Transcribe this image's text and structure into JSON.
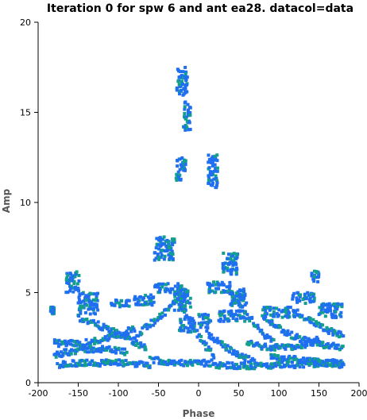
{
  "chart_data": {
    "type": "scatter",
    "title": "Iteration 0 for spw 6 and ant ea28.  datacol=data",
    "xlabel": "Phase",
    "ylabel": "Amp",
    "xlim": [
      -200,
      200
    ],
    "ylim": [
      0,
      20
    ],
    "x_ticks": [
      -200,
      -150,
      -100,
      -50,
      0,
      50,
      100,
      150,
      200
    ],
    "y_ticks": [
      0,
      5,
      10,
      15,
      20
    ],
    "x_tick_labels": [
      "-200",
      "-150",
      "-100",
      "-50",
      "0",
      "50",
      "100",
      "150",
      "200"
    ],
    "y_tick_labels": [
      "0",
      "5",
      "10",
      "15",
      "20"
    ],
    "grid": false,
    "colors": {
      "primary": "#1f6ff0",
      "secondary": "#12a08c"
    },
    "clusters": [
      {
        "x": [
          -27,
          -14
        ],
        "y": [
          15.8,
          17.5
        ]
      },
      {
        "x": [
          -20,
          -10
        ],
        "y": [
          14.0,
          15.6
        ]
      },
      {
        "x": [
          -28,
          -16
        ],
        "y": [
          11.2,
          12.6
        ]
      },
      {
        "x": [
          12,
          24
        ],
        "y": [
          10.8,
          12.7
        ]
      },
      {
        "x": [
          -55,
          -30
        ],
        "y": [
          6.8,
          8.1
        ]
      },
      {
        "x": [
          -165,
          -148
        ],
        "y": [
          5.0,
          6.2
        ]
      },
      {
        "x": [
          -150,
          -125
        ],
        "y": [
          3.8,
          5.0
        ]
      },
      {
        "x": [
          -110,
          -85
        ],
        "y": [
          4.1,
          4.6
        ]
      },
      {
        "x": [
          -80,
          -55
        ],
        "y": [
          4.3,
          4.9
        ]
      },
      {
        "x": [
          -55,
          -20
        ],
        "y": [
          5.0,
          5.5
        ]
      },
      {
        "x": [
          -30,
          -10
        ],
        "y": [
          4.0,
          5.2
        ]
      },
      {
        "x": [
          -25,
          -5
        ],
        "y": [
          2.8,
          3.6
        ]
      },
      {
        "x": [
          10,
          40
        ],
        "y": [
          5.0,
          5.6
        ]
      },
      {
        "x": [
          30,
          50
        ],
        "y": [
          6.0,
          7.2
        ]
      },
      {
        "x": [
          40,
          60
        ],
        "y": [
          4.2,
          5.2
        ]
      },
      {
        "x": [
          0,
          15
        ],
        "y": [
          3.0,
          3.8
        ]
      },
      {
        "x": [
          25,
          60
        ],
        "y": [
          3.4,
          4.0
        ]
      },
      {
        "x": [
          80,
          120
        ],
        "y": [
          3.6,
          4.2
        ]
      },
      {
        "x": [
          115,
          145
        ],
        "y": [
          4.4,
          5.0
        ]
      },
      {
        "x": [
          140,
          150
        ],
        "y": [
          5.5,
          6.2
        ]
      },
      {
        "x": [
          150,
          180
        ],
        "y": [
          3.6,
          4.4
        ]
      },
      {
        "x": [
          -185,
          -180
        ],
        "y": [
          3.8,
          4.2
        ]
      }
    ],
    "curves": [
      {
        "x0": -180,
        "y0": 1.5,
        "x1": -140,
        "y1": 2.1,
        "x2": -90,
        "y2": 1.7
      },
      {
        "x0": -175,
        "y0": 1.0,
        "x1": -120,
        "y1": 1.2,
        "x2": -60,
        "y2": 1.0
      },
      {
        "x0": -150,
        "y0": 3.6,
        "x1": -110,
        "y1": 3.0,
        "x2": -65,
        "y2": 1.9
      },
      {
        "x0": -180,
        "y0": 2.2,
        "x1": -130,
        "y1": 2.0,
        "x2": -80,
        "y2": 3.0
      },
      {
        "x0": -80,
        "y0": 2.6,
        "x1": -40,
        "y1": 3.8,
        "x2": -15,
        "y2": 5.2
      },
      {
        "x0": -60,
        "y0": 1.3,
        "x1": -20,
        "y1": 1.0,
        "x2": 20,
        "y2": 1.1
      },
      {
        "x0": -20,
        "y0": 4.2,
        "x1": 0,
        "y1": 2.4,
        "x2": 20,
        "y2": 1.5
      },
      {
        "x0": 10,
        "y0": 2.8,
        "x1": 40,
        "y1": 1.6,
        "x2": 70,
        "y2": 1.2
      },
      {
        "x0": 20,
        "y0": 1.0,
        "x1": 90,
        "y1": 0.8,
        "x2": 180,
        "y2": 1.2
      },
      {
        "x0": 40,
        "y0": 5.0,
        "x1": 70,
        "y1": 3.0,
        "x2": 100,
        "y2": 2.0
      },
      {
        "x0": 60,
        "y0": 2.2,
        "x1": 110,
        "y1": 1.6,
        "x2": 150,
        "y2": 2.4
      },
      {
        "x0": 80,
        "y0": 3.7,
        "x1": 125,
        "y1": 2.0,
        "x2": 180,
        "y2": 2.0
      },
      {
        "x0": 120,
        "y0": 4.0,
        "x1": 150,
        "y1": 3.0,
        "x2": 180,
        "y2": 2.6
      },
      {
        "x0": 90,
        "y0": 1.4,
        "x1": 140,
        "y1": 1.2,
        "x2": 180,
        "y2": 1.0
      }
    ]
  }
}
